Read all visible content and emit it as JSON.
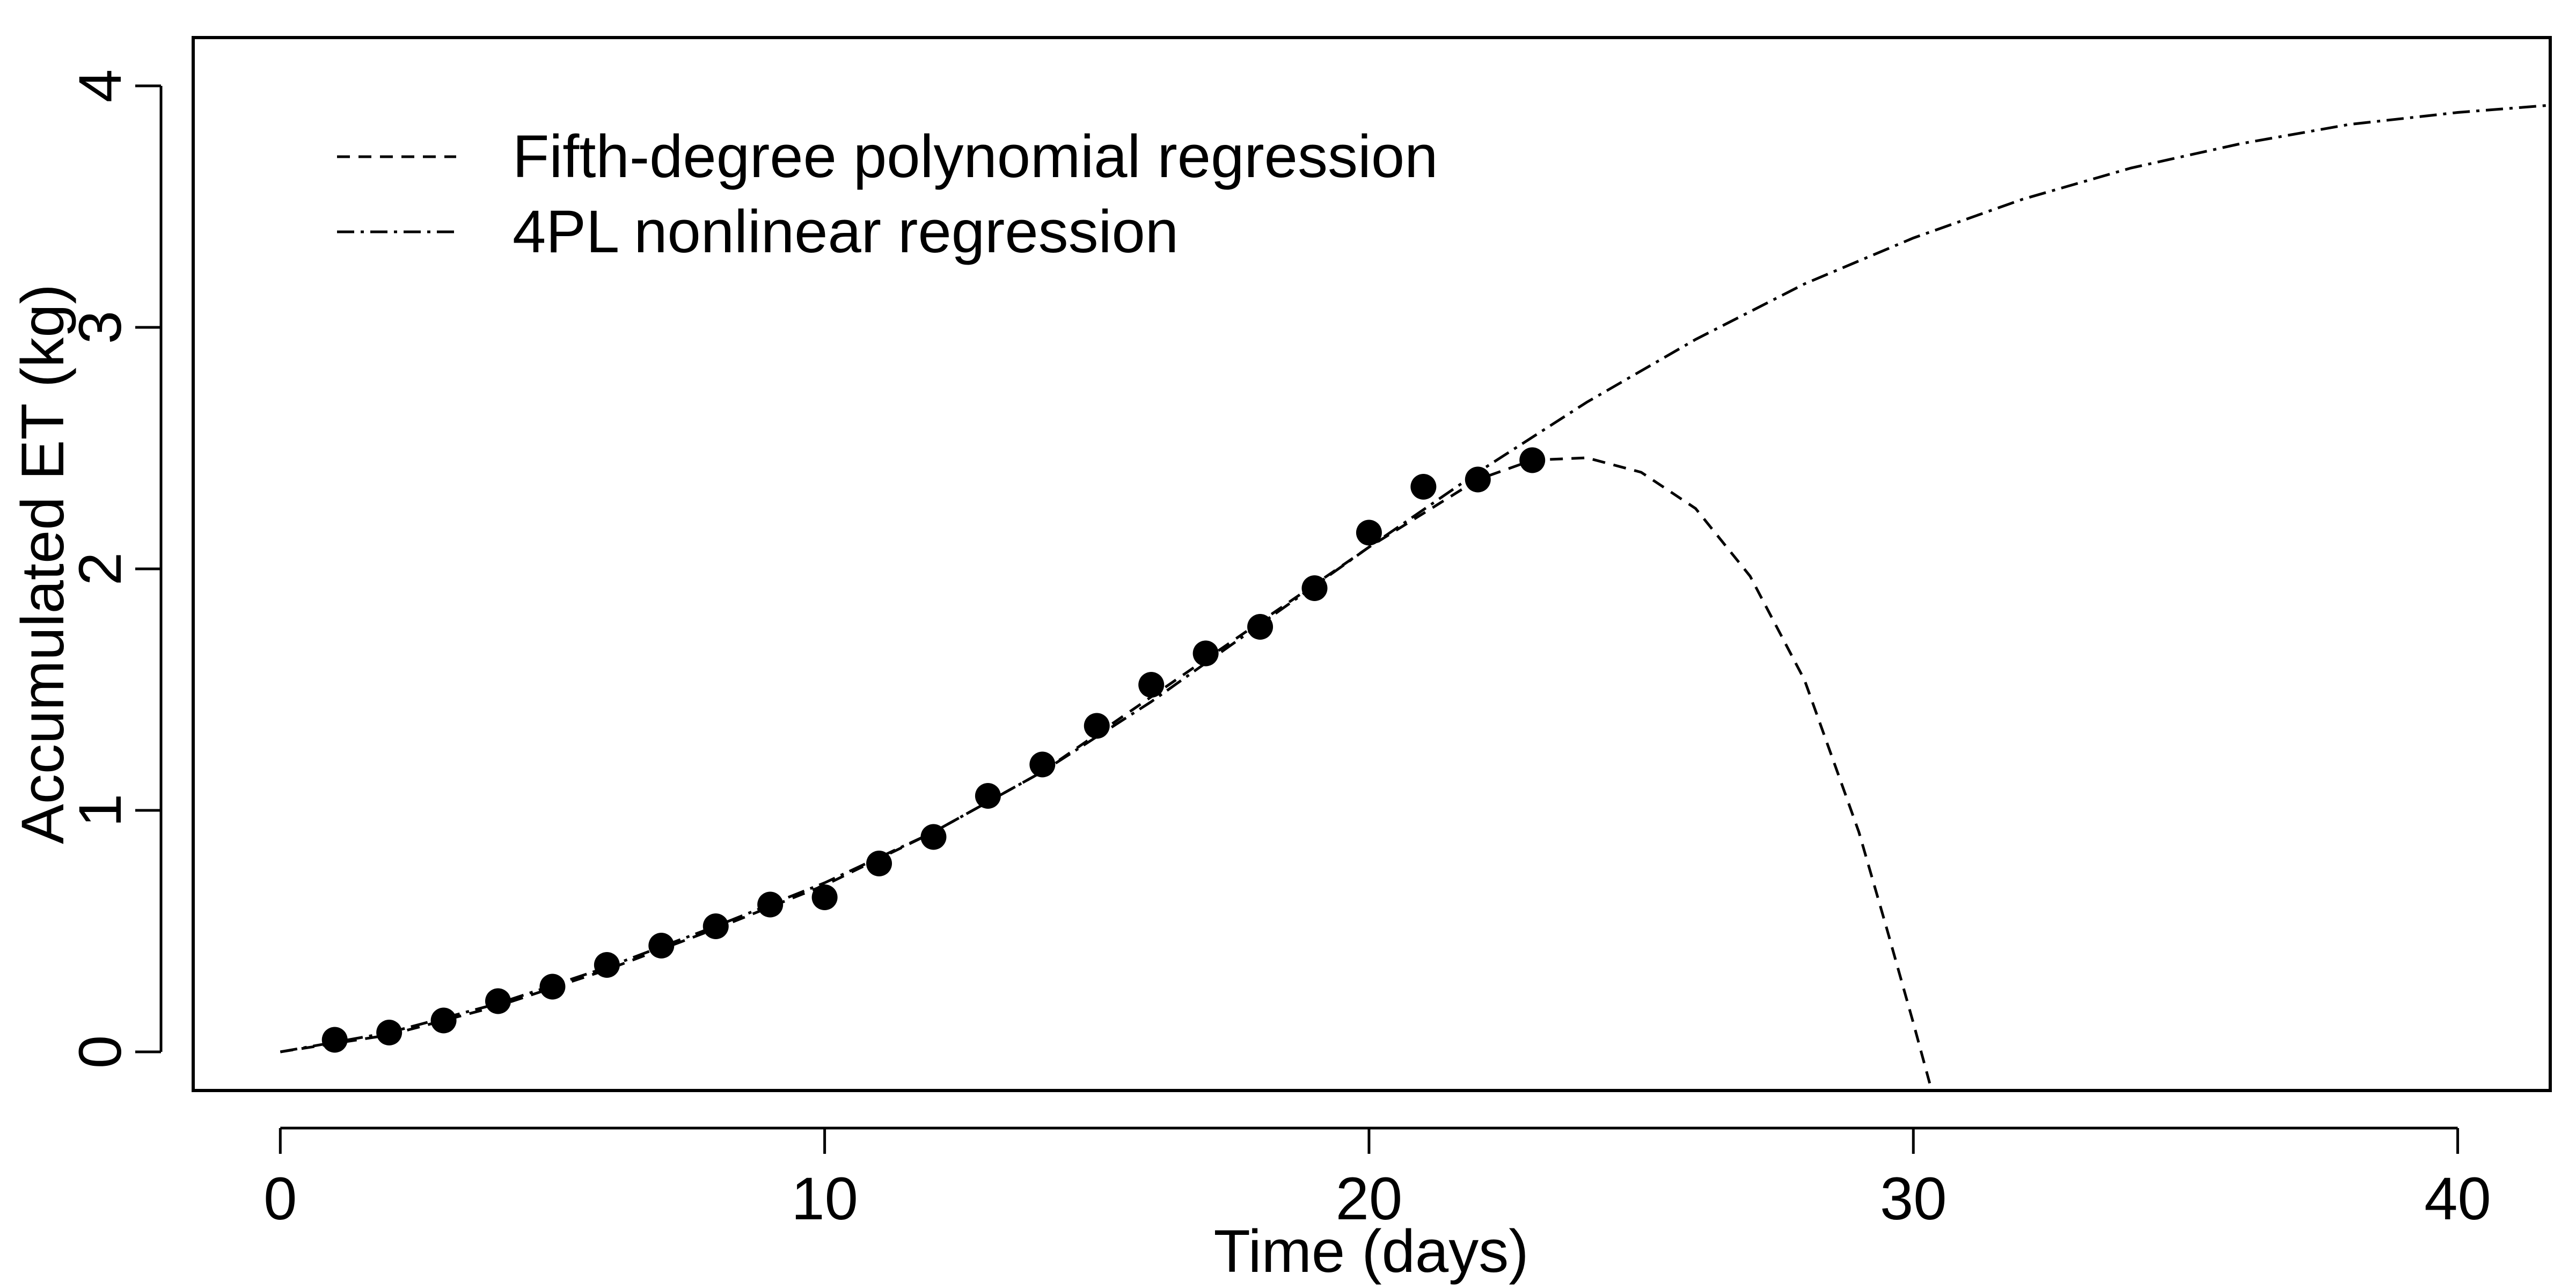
{
  "chart_data": {
    "type": "scatter",
    "title": "",
    "xlabel": "Time (days)",
    "ylabel": "Accumulated ET (kg)",
    "xlim": [
      -1.6,
      41.7
    ],
    "ylim": [
      -0.16,
      4.2
    ],
    "x_ticks": [
      0,
      10,
      20,
      30,
      40
    ],
    "y_ticks": [
      0,
      1,
      2,
      3,
      4
    ],
    "x_tick_labels": [
      "0",
      "10",
      "20",
      "30",
      "40"
    ],
    "y_tick_labels": [
      "0",
      "1",
      "2",
      "3",
      "4"
    ],
    "grid": false,
    "legend_position": "top-left",
    "colors": {
      "axis": "#000000",
      "points": "#000000",
      "lines": "#000000"
    },
    "points": {
      "x": [
        1,
        2,
        3,
        4,
        5,
        6,
        7,
        8,
        9,
        10,
        11,
        12,
        13,
        14,
        15,
        16,
        17,
        18,
        19,
        20,
        21,
        22,
        23
      ],
      "y": [
        0.05,
        0.08,
        0.13,
        0.21,
        0.27,
        0.36,
        0.44,
        0.52,
        0.61,
        0.64,
        0.78,
        0.89,
        1.06,
        1.19,
        1.35,
        1.52,
        1.65,
        1.76,
        1.92,
        2.15,
        2.34,
        2.37,
        2.45
      ]
    },
    "series": [
      {
        "name": "Fifth-degree polynomial regression",
        "line_style": "dashed",
        "x": [
          0,
          2,
          4,
          6,
          8,
          10,
          12,
          14,
          16,
          18,
          20,
          21,
          22,
          23,
          24,
          25,
          26,
          27,
          28,
          29,
          29.5,
          30,
          30.3
        ],
        "y": [
          0.0,
          0.07,
          0.19,
          0.34,
          0.51,
          0.69,
          0.91,
          1.16,
          1.47,
          1.78,
          2.09,
          2.23,
          2.37,
          2.45,
          2.46,
          2.4,
          2.25,
          1.97,
          1.54,
          0.91,
          0.52,
          0.12,
          -0.13
        ]
      },
      {
        "name": "4PL nonlinear regression",
        "line_style": "dashdot",
        "x": [
          0,
          2,
          4,
          6,
          8,
          10,
          12,
          14,
          16,
          18,
          20,
          22,
          24,
          26,
          28,
          30,
          32,
          34,
          36,
          38,
          40,
          41.7
        ],
        "y": [
          0.0,
          0.08,
          0.2,
          0.35,
          0.52,
          0.7,
          0.91,
          1.16,
          1.45,
          1.77,
          2.09,
          2.4,
          2.69,
          2.95,
          3.18,
          3.37,
          3.53,
          3.66,
          3.76,
          3.84,
          3.89,
          3.92
        ]
      }
    ]
  }
}
